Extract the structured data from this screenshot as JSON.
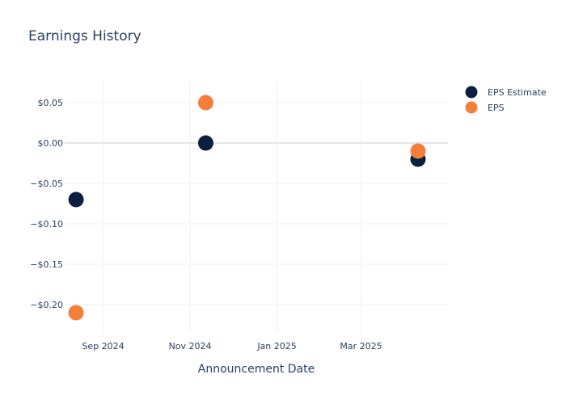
{
  "chart_data": {
    "type": "scatter",
    "title": "Earnings History",
    "xlabel": "Announcement Date",
    "ylabel": "",
    "x_ticks": [
      {
        "label": "Sep 2024",
        "date": "2024-09-01"
      },
      {
        "label": "Nov 2024",
        "date": "2024-11-01"
      },
      {
        "label": "Jan 2025",
        "date": "2025-01-01"
      },
      {
        "label": "Mar 2025",
        "date": "2025-03-01"
      }
    ],
    "xlim": [
      "2024-08-05",
      "2025-05-01"
    ],
    "y_ticks": [
      {
        "label": "$0.05",
        "value": 0.05
      },
      {
        "label": "$0.00",
        "value": 0.0
      },
      {
        "label": "−$0.05",
        "value": -0.05
      },
      {
        "label": "−$0.10",
        "value": -0.1
      },
      {
        "label": "−$0.15",
        "value": -0.15
      },
      {
        "label": "−$0.20",
        "value": -0.2
      }
    ],
    "ylim": [
      -0.235,
      0.077
    ],
    "grid": true,
    "legend_position": "top-right",
    "series": [
      {
        "name": "EPS Estimate",
        "color": "#0b1f3f",
        "points": [
          {
            "x": "2024-08-13",
            "y": -0.07
          },
          {
            "x": "2024-11-12",
            "y": 0.0
          },
          {
            "x": "2025-04-10",
            "y": -0.02
          }
        ]
      },
      {
        "name": "EPS",
        "color": "#f47f3a",
        "points": [
          {
            "x": "2024-08-13",
            "y": -0.21
          },
          {
            "x": "2024-11-12",
            "y": 0.05
          },
          {
            "x": "2025-04-10",
            "y": -0.01
          }
        ]
      }
    ]
  }
}
